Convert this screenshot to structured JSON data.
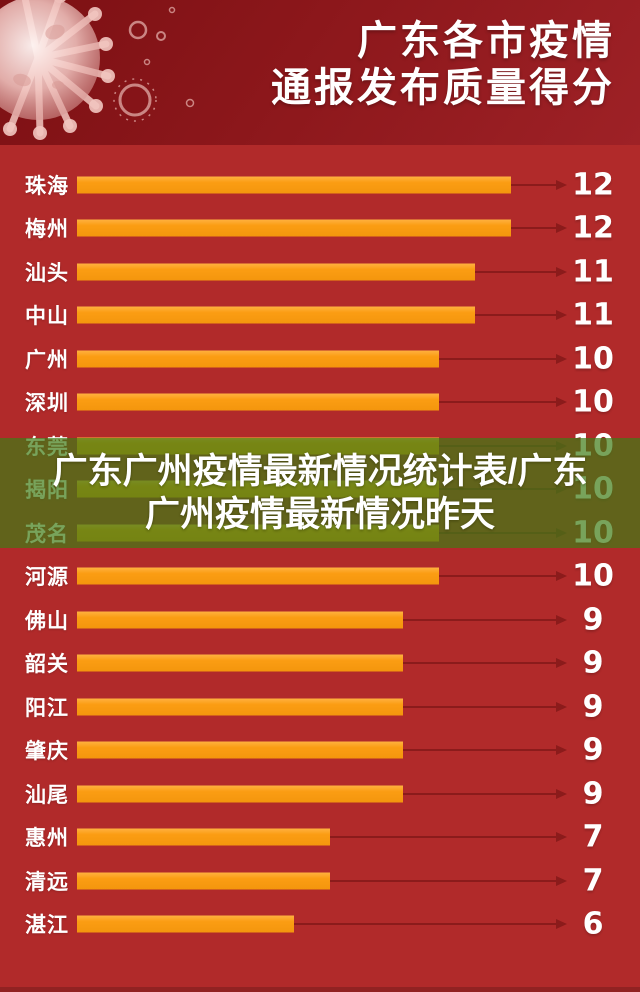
{
  "header": {
    "title_line1": "广东各市疫情",
    "title_line2": "通报发布质量得分"
  },
  "overlay": {
    "line1": "广东广州疫情最新情况统计表/广东",
    "line2": "广州疫情最新情况昨天"
  },
  "chart_data": {
    "type": "bar",
    "orientation": "horizontal",
    "title": "广东各市疫情通报发布质量得分",
    "categories": [
      "珠海",
      "梅州",
      "汕头",
      "中山",
      "广州",
      "深圳",
      "东莞",
      "揭阳",
      "茂名",
      "河源",
      "佛山",
      "韶关",
      "阳江",
      "肇庆",
      "汕尾",
      "惠州",
      "清远",
      "湛江"
    ],
    "values": [
      12,
      12,
      11,
      11,
      10,
      10,
      10,
      10,
      10,
      10,
      9,
      9,
      9,
      9,
      9,
      7,
      7,
      6
    ],
    "value_axis_max": 13.7,
    "grid": false,
    "legend": false,
    "data_labels": "right-of-arrow"
  },
  "colors": {
    "header_bg": "#8C171B",
    "body_bg": "#B12A2A",
    "bar": "#FB9D13",
    "arrow": "#8B1B1B",
    "overlay_band": "rgba(62,124,22,0.70)",
    "text": "#FFFFFF"
  }
}
